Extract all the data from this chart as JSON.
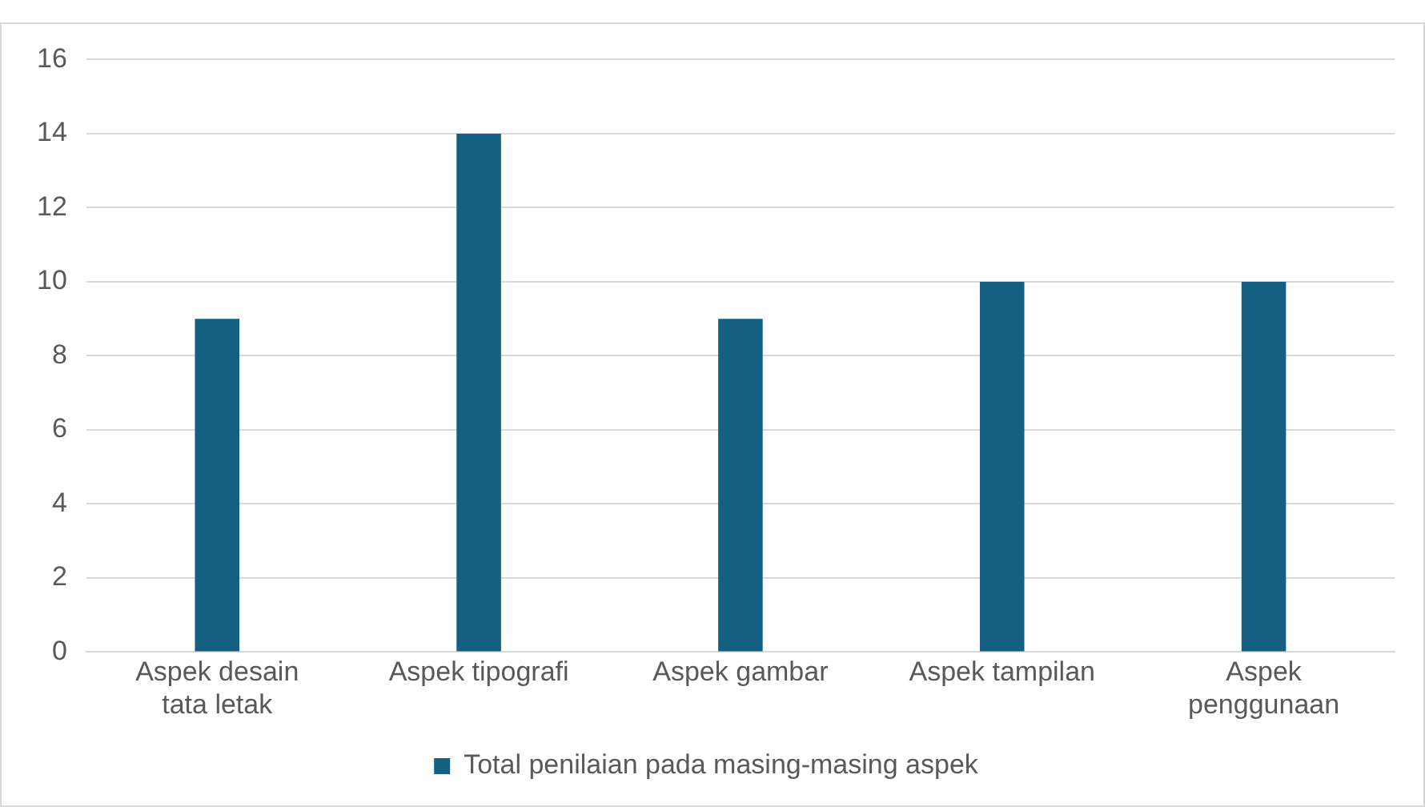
{
  "chart_data": {
    "type": "bar",
    "categories": [
      "Aspek desain tata letak",
      "Aspek tipografi",
      "Aspek gambar",
      "Aspek tampilan",
      "Aspek penggunaan"
    ],
    "series": [
      {
        "name": "Total penilaian pada masing-masing aspek",
        "color": "#156082",
        "values": [
          9,
          14,
          9,
          10,
          10
        ]
      }
    ],
    "ylim": [
      0,
      16
    ],
    "yticks": [
      0,
      2,
      4,
      6,
      8,
      10,
      12,
      14,
      16
    ],
    "grid": "y",
    "legend": "bottom"
  }
}
